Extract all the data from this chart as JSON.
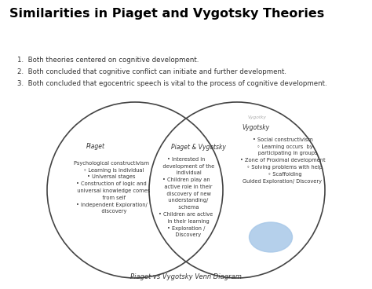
{
  "title": "Similarities in Piaget and Vygotsky Theories",
  "background_color": "#ffffff",
  "points": [
    "1.  Both theories centered on cognitive development.",
    "2.  Both concluded that cognitive conflict can initiate and further development.",
    "3.  Both concluded that egocentric speech is vital to the process of cognitive development."
  ],
  "caption": "Piaget vs Vygotsky Venn Diagram",
  "left_label": "Piaget",
  "right_label_small": "Vygotsky",
  "right_label_tiny": "Vygotky",
  "center_label": "Piaget & Vygotsky",
  "left_text": "Psychological constructivism\n   ◦ Learning is individual\n• Universal stages\n• Construction of logic and\n   universal knowledge comes\n   from self\n• Independent Exploration/\n   discovery",
  "center_text": "• Interested in\n   development of the\n   individual\n• Children play an\n   active role in their\n   discovery of new\n   understanding/\n   schema\n• Children are active\n   in their learning\n• Exploration /\n   Discovery",
  "right_text": "• Social constructivism\n   ◦ Learning occurs  by\n      participating in groups\n• Zone of Proximal development\n   ◦ Solving problems with help\n   ◦ Scaffolding\nGuided Exploration/ Discovery",
  "circle_color": "#444444",
  "circle_linewidth": 1.2,
  "ellipse_color": "#a8c8e8",
  "text_color": "#333333",
  "title_fontsize": 11.5,
  "body_fontsize": 4.8,
  "label_fontsize": 5.5,
  "points_fontsize": 6.2,
  "caption_fontsize": 6.0,
  "tiny_label_fontsize": 4.2,
  "tiny_label_color": "#aaaaaa"
}
